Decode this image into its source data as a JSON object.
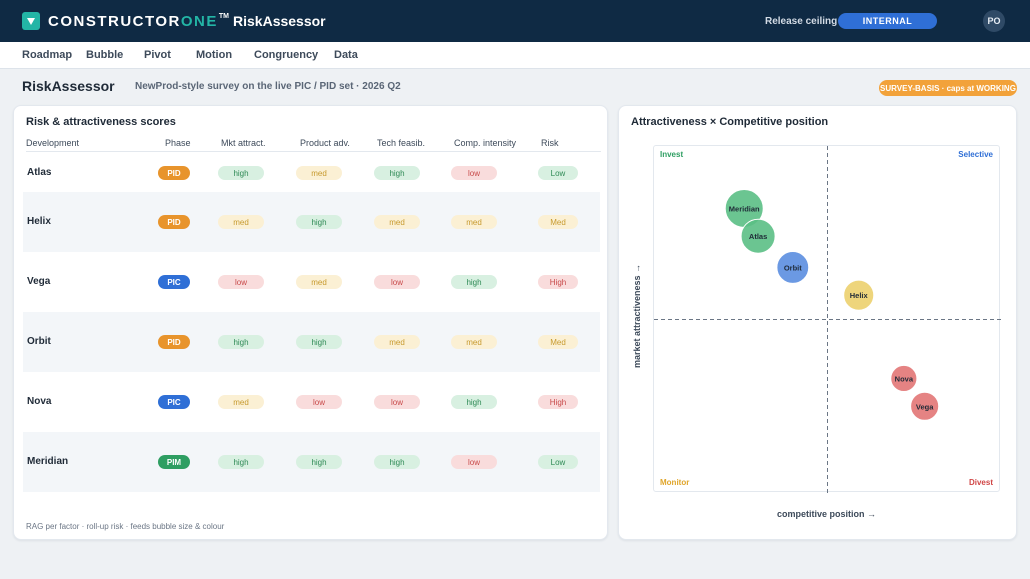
{
  "header": {
    "brand_main": "CONSTRUCTOR",
    "brand_accent": "ONE",
    "brand_tm": "TM",
    "app_name": "RiskAssessor",
    "release_label": "Release ceiling",
    "release_value": "INTERNAL",
    "avatar": "PO"
  },
  "nav": {
    "items": [
      "Roadmap",
      "Bubble",
      "Pivot",
      "Motion",
      "Congruency",
      "Data"
    ]
  },
  "page": {
    "title": "RiskAssessor",
    "subtitle": "NewProd-style survey on the live PIC / PID set · 2026 Q2",
    "badge": "SURVEY-BASIS · caps at WORKING"
  },
  "table": {
    "title": "Risk & attractiveness scores",
    "columns": [
      "Development",
      "Phase",
      "Mkt attract.",
      "Product adv.",
      "Tech feasib.",
      "Comp. intensity",
      "Risk"
    ],
    "rows": [
      {
        "name": "Atlas",
        "phase": "PID",
        "mkt": "high",
        "adv": "med",
        "tech": "high",
        "comp": "low",
        "risk": "Low"
      },
      {
        "name": "Helix",
        "phase": "PID",
        "mkt": "med",
        "adv": "high",
        "tech": "med",
        "comp": "med",
        "risk": "Med"
      },
      {
        "name": "Vega",
        "phase": "PIC",
        "mkt": "low",
        "adv": "med",
        "tech": "low",
        "comp": "high",
        "risk": "High"
      },
      {
        "name": "Orbit",
        "phase": "PID",
        "mkt": "high",
        "adv": "high",
        "tech": "med",
        "comp": "med",
        "risk": "Med"
      },
      {
        "name": "Nova",
        "phase": "PIC",
        "mkt": "med",
        "adv": "low",
        "tech": "low",
        "comp": "high",
        "risk": "High"
      },
      {
        "name": "Meridian",
        "phase": "PIM",
        "mkt": "high",
        "adv": "high",
        "tech": "high",
        "comp": "low",
        "risk": "Low"
      }
    ],
    "footnote": "RAG per factor · roll-up risk · feeds bubble size & colour"
  },
  "colors": {
    "phase": {
      "PID": "#e8942c",
      "PIC": "#2f6fd6",
      "PIM": "#2e9e62"
    },
    "rag": {
      "high": {
        "bg": "#d8f0e1",
        "fg": "#2e8a55"
      },
      "med": {
        "bg": "#fbf0d4",
        "fg": "#c79a2e"
      },
      "low": {
        "bg": "#f9dcdc",
        "fg": "#c84a4a"
      }
    },
    "risk": {
      "Low": {
        "bg": "#d8f0e1",
        "fg": "#2e8a55"
      },
      "Med": {
        "bg": "#fbf0d4",
        "fg": "#c79a2e"
      },
      "High": {
        "bg": "#f9dcdc",
        "fg": "#c84a4a"
      }
    },
    "bubble": {
      "Low": "#5bbf85",
      "Med": "#ecd06e",
      "High": "#e27676",
      "PIC_blue": "#5b8ee0"
    },
    "quadrant": {
      "invest": "#2e9e62",
      "selective": "#2f6fd6",
      "monitor": "#e0a52a",
      "divest": "#d04545"
    }
  },
  "chart": {
    "title": "Attractiveness × Competitive position",
    "quadrants": {
      "top_left": "Invest",
      "top_right": "Selective",
      "bottom_left": "Monitor",
      "bottom_right": "Divest"
    },
    "xlabel": "competitive position →",
    "ylabel": "market attractiveness →"
  },
  "chart_data": {
    "type": "scatter",
    "xlim": [
      0,
      1
    ],
    "ylim": [
      0,
      1
    ],
    "points": [
      {
        "label": "Meridian",
        "x": 0.26,
        "y": 0.82,
        "size": 1.0,
        "color_key": "Low"
      },
      {
        "label": "Atlas",
        "x": 0.3,
        "y": 0.74,
        "size": 0.82,
        "color_key": "Low"
      },
      {
        "label": "Orbit",
        "x": 0.4,
        "y": 0.65,
        "size": 0.72,
        "color_key": "PIC_blue"
      },
      {
        "label": "Helix",
        "x": 0.59,
        "y": 0.57,
        "size": 0.64,
        "color_key": "Med"
      },
      {
        "label": "Nova",
        "x": 0.72,
        "y": 0.33,
        "size": 0.46,
        "color_key": "High"
      },
      {
        "label": "Vega",
        "x": 0.78,
        "y": 0.25,
        "size": 0.55,
        "color_key": "High"
      }
    ]
  }
}
